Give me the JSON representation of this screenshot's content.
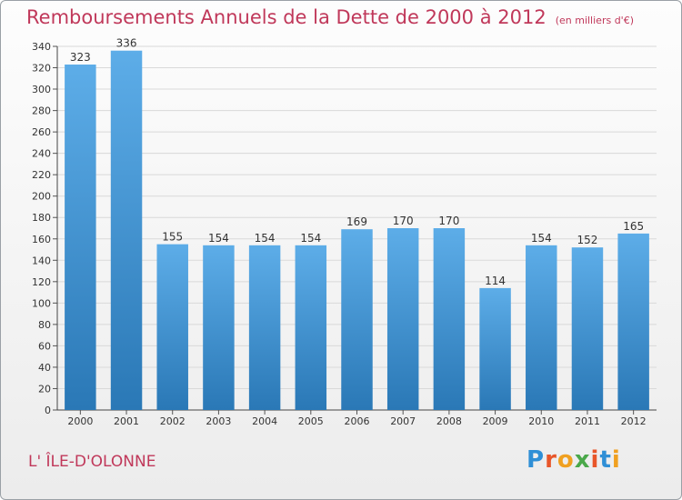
{
  "page": {
    "commune": "L' ÎLE-D'OLONNE",
    "logo_text": "Proxiti"
  },
  "chart_data": {
    "type": "bar",
    "title": "Remboursements Annuels de la Dette de 2000 à 2012",
    "subtitle": "(en milliers d'€)",
    "xlabel": "",
    "ylabel": "",
    "categories": [
      "2000",
      "2001",
      "2002",
      "2003",
      "2004",
      "2005",
      "2006",
      "2007",
      "2008",
      "2009",
      "2010",
      "2011",
      "2012"
    ],
    "values": [
      323,
      336,
      155,
      154,
      154,
      154,
      169,
      170,
      170,
      114,
      154,
      152,
      165
    ],
    "ylim": [
      0,
      340
    ],
    "ytick_step": 20,
    "grid": true,
    "legend": "none",
    "colors": {
      "bar_top": "#5dade8",
      "bar_bottom": "#2a78b6",
      "grid": "#d9d9d9",
      "title": "#c0385a",
      "axis_text": "#333333"
    }
  }
}
